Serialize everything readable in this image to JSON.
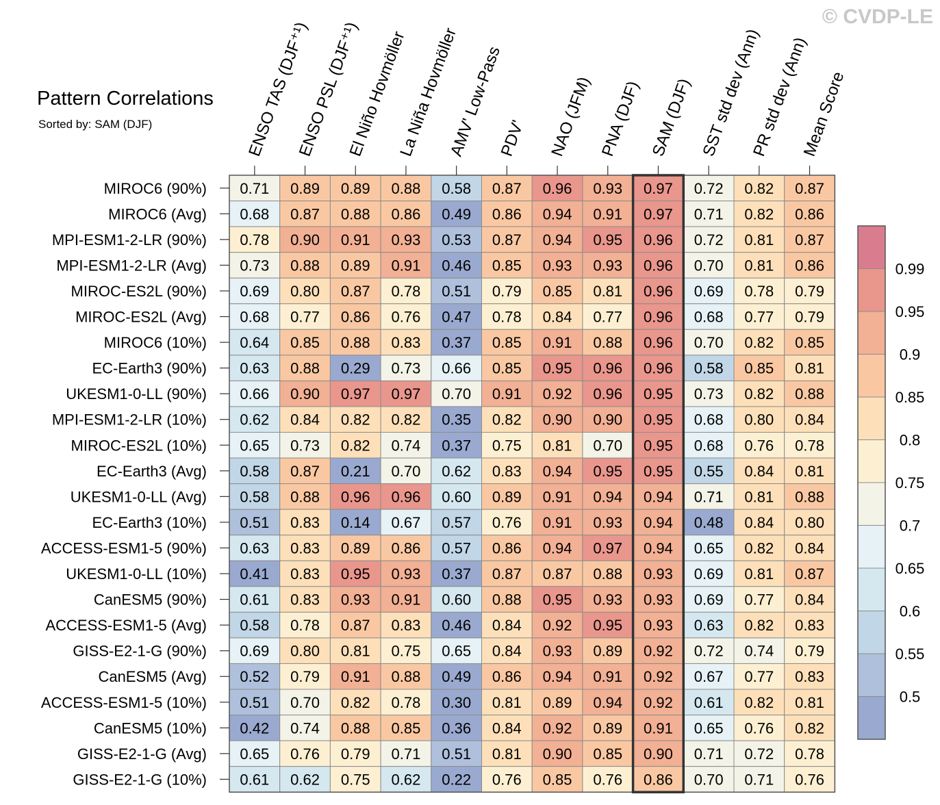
{
  "watermark": "© CVDP-LE",
  "chart_data": {
    "type": "heatmap",
    "title": "Pattern Correlations",
    "subtitle": "Sorted by: SAM (DJF)",
    "columns": [
      "ENSO TAS (DJF⁺¹)",
      "ENSO PSL (DJF⁺¹)",
      "El Niño Hovmöller",
      "La Niña Hovmöller",
      "AMV' Low-Pass",
      "PDV'",
      "NAO (JFM)",
      "PNA (DJF)",
      "SAM (DJF)",
      "SST std dev (Ann)",
      "PR std dev (Ann)",
      "Mean Score"
    ],
    "highlighted_column": "SAM (DJF)",
    "rows": [
      "MIROC6 (90%)",
      "MIROC6 (Avg)",
      "MPI-ESM1-2-LR (90%)",
      "MPI-ESM1-2-LR (Avg)",
      "MIROC-ES2L (90%)",
      "MIROC-ES2L (Avg)",
      "MIROC6 (10%)",
      "EC-Earth3 (90%)",
      "UKESM1-0-LL (90%)",
      "MPI-ESM1-2-LR (10%)",
      "MIROC-ES2L (10%)",
      "EC-Earth3 (Avg)",
      "UKESM1-0-LL (Avg)",
      "EC-Earth3 (10%)",
      "ACCESS-ESM1-5 (90%)",
      "UKESM1-0-LL (10%)",
      "CanESM5 (90%)",
      "ACCESS-ESM1-5 (Avg)",
      "GISS-E2-1-G (90%)",
      "CanESM5 (Avg)",
      "ACCESS-ESM1-5 (10%)",
      "CanESM5 (10%)",
      "GISS-E2-1-G (Avg)",
      "GISS-E2-1-G (10%)"
    ],
    "values": [
      [
        0.71,
        0.89,
        0.89,
        0.88,
        0.58,
        0.87,
        0.96,
        0.93,
        0.97,
        0.72,
        0.82,
        0.87
      ],
      [
        0.68,
        0.87,
        0.88,
        0.86,
        0.49,
        0.86,
        0.94,
        0.91,
        0.97,
        0.71,
        0.82,
        0.86
      ],
      [
        0.78,
        0.9,
        0.91,
        0.93,
        0.53,
        0.87,
        0.94,
        0.95,
        0.96,
        0.72,
        0.81,
        0.87
      ],
      [
        0.73,
        0.88,
        0.89,
        0.91,
        0.46,
        0.85,
        0.93,
        0.93,
        0.96,
        0.7,
        0.81,
        0.86
      ],
      [
        0.69,
        0.8,
        0.87,
        0.78,
        0.51,
        0.79,
        0.85,
        0.81,
        0.96,
        0.69,
        0.78,
        0.79
      ],
      [
        0.68,
        0.77,
        0.86,
        0.76,
        0.47,
        0.78,
        0.84,
        0.77,
        0.96,
        0.68,
        0.77,
        0.79
      ],
      [
        0.64,
        0.85,
        0.88,
        0.83,
        0.37,
        0.85,
        0.91,
        0.88,
        0.96,
        0.7,
        0.82,
        0.85
      ],
      [
        0.63,
        0.88,
        0.29,
        0.73,
        0.66,
        0.85,
        0.95,
        0.96,
        0.96,
        0.58,
        0.85,
        0.81
      ],
      [
        0.66,
        0.9,
        0.97,
        0.97,
        0.7,
        0.91,
        0.92,
        0.96,
        0.95,
        0.73,
        0.82,
        0.88
      ],
      [
        0.62,
        0.84,
        0.82,
        0.82,
        0.35,
        0.82,
        0.9,
        0.9,
        0.95,
        0.68,
        0.8,
        0.84
      ],
      [
        0.65,
        0.73,
        0.82,
        0.74,
        0.37,
        0.75,
        0.81,
        0.7,
        0.95,
        0.68,
        0.76,
        0.78
      ],
      [
        0.58,
        0.87,
        0.21,
        0.7,
        0.62,
        0.83,
        0.94,
        0.95,
        0.95,
        0.55,
        0.84,
        0.81
      ],
      [
        0.58,
        0.88,
        0.96,
        0.96,
        0.6,
        0.89,
        0.91,
        0.94,
        0.94,
        0.71,
        0.81,
        0.88
      ],
      [
        0.51,
        0.83,
        0.14,
        0.67,
        0.57,
        0.76,
        0.91,
        0.93,
        0.94,
        0.48,
        0.84,
        0.8
      ],
      [
        0.63,
        0.83,
        0.89,
        0.86,
        0.57,
        0.86,
        0.94,
        0.97,
        0.94,
        0.65,
        0.82,
        0.84
      ],
      [
        0.41,
        0.83,
        0.95,
        0.93,
        0.37,
        0.87,
        0.87,
        0.88,
        0.93,
        0.69,
        0.81,
        0.87
      ],
      [
        0.61,
        0.83,
        0.93,
        0.91,
        0.6,
        0.88,
        0.95,
        0.93,
        0.93,
        0.69,
        0.77,
        0.84
      ],
      [
        0.58,
        0.78,
        0.87,
        0.83,
        0.46,
        0.84,
        0.92,
        0.95,
        0.93,
        0.63,
        0.82,
        0.83
      ],
      [
        0.69,
        0.8,
        0.81,
        0.75,
        0.65,
        0.84,
        0.93,
        0.89,
        0.92,
        0.72,
        0.74,
        0.79
      ],
      [
        0.52,
        0.79,
        0.91,
        0.88,
        0.49,
        0.86,
        0.94,
        0.91,
        0.92,
        0.67,
        0.77,
        0.83
      ],
      [
        0.51,
        0.7,
        0.82,
        0.78,
        0.3,
        0.81,
        0.89,
        0.94,
        0.92,
        0.61,
        0.82,
        0.81
      ],
      [
        0.42,
        0.74,
        0.88,
        0.85,
        0.36,
        0.84,
        0.92,
        0.89,
        0.91,
        0.65,
        0.76,
        0.82
      ],
      [
        0.65,
        0.76,
        0.79,
        0.71,
        0.51,
        0.81,
        0.9,
        0.85,
        0.9,
        0.71,
        0.72,
        0.78
      ],
      [
        0.61,
        0.62,
        0.75,
        0.62,
        0.22,
        0.76,
        0.85,
        0.76,
        0.86,
        0.7,
        0.71,
        0.76
      ]
    ],
    "colorbar": {
      "thresholds": [
        0.5,
        0.55,
        0.6,
        0.65,
        0.7,
        0.75,
        0.8,
        0.85,
        0.9,
        0.95,
        0.99
      ],
      "tick_labels": [
        "0.99",
        "0.95",
        "0.9",
        "0.85",
        "0.8",
        "0.75",
        "0.7",
        "0.65",
        "0.6",
        "0.55",
        "0.5"
      ],
      "colors": [
        "#9aa9cf",
        "#aec0dc",
        "#c1d6e6",
        "#d5e8f0",
        "#e6f2f5",
        "#f3f3e8",
        "#fdf0d2",
        "#fde0b9",
        "#f9c8a2",
        "#f2b094",
        "#e9968d",
        "#d97d8e"
      ]
    }
  }
}
